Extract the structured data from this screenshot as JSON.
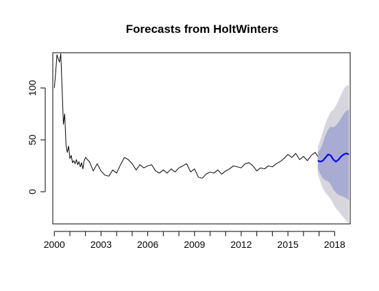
{
  "chart_data": {
    "type": "line",
    "title": "Forecasts from HoltWinters",
    "xlabel": "",
    "ylabel": "",
    "xlim": [
      1999.9,
      2019.0
    ],
    "ylim": [
      -31,
      134
    ],
    "x_ticks": [
      2000,
      2003,
      2006,
      2009,
      2012,
      2015,
      2018
    ],
    "x_tick_labels": [
      "2000",
      "2003",
      "2006",
      "2009",
      "2012",
      "2015",
      "2018"
    ],
    "y_ticks": [
      0,
      50,
      100
    ],
    "y_tick_labels": [
      "0",
      "50",
      "100"
    ],
    "grid": false,
    "colors": {
      "observed": "#000000",
      "forecast": "#0000ff",
      "band_80": "#a9acd2",
      "band_95": "#d6d6dc"
    },
    "series": [
      {
        "x": [
          2000.0,
          2000.083,
          2000.167,
          2000.25,
          2000.333,
          2000.417,
          2000.5,
          2000.583,
          2000.667,
          2000.75,
          2000.833,
          2000.917,
          2001.0,
          2001.083,
          2001.167,
          2001.25,
          2001.333,
          2001.417,
          2001.5,
          2001.583,
          2001.667,
          2001.75,
          2001.833,
          2001.917,
          2002.0,
          2002.25,
          2002.5,
          2002.75,
          2003.0,
          2003.25,
          2003.5,
          2003.75,
          2004.0,
          2004.25,
          2004.5,
          2004.75,
          2005.0,
          2005.25,
          2005.5,
          2005.75,
          2006.0,
          2006.25,
          2006.5,
          2006.75,
          2007.0,
          2007.25,
          2007.5,
          2007.75,
          2008.0,
          2008.25,
          2008.5,
          2008.75,
          2009.0,
          2009.25,
          2009.5,
          2009.75,
          2010.0,
          2010.25,
          2010.5,
          2010.75,
          2011.0,
          2011.25,
          2011.5,
          2011.75,
          2012.0,
          2012.25,
          2012.5,
          2012.75,
          2013.0,
          2013.25,
          2013.5,
          2013.75,
          2014.0,
          2014.25,
          2014.5,
          2014.75,
          2015.0,
          2015.25,
          2015.5,
          2015.75,
          2016.0,
          2016.25,
          2016.5,
          2016.75,
          2016.917
        ],
        "values": [
          100,
          115,
          132,
          128,
          125,
          133,
          100,
          65,
          75,
          45,
          38,
          44,
          32,
          35,
          28,
          30,
          27,
          31,
          26,
          29,
          24,
          28,
          22,
          30,
          33,
          29,
          20,
          27,
          20,
          16,
          15,
          21,
          18,
          26,
          33,
          31,
          27,
          21,
          26,
          23,
          25,
          26,
          20,
          18,
          21,
          18,
          22,
          19,
          23,
          25,
          27,
          19,
          22,
          14,
          13,
          17,
          19,
          18,
          21,
          17,
          20,
          22,
          25,
          24,
          23,
          27,
          28,
          25,
          20,
          23,
          22,
          25,
          24,
          27,
          29,
          32,
          36,
          33,
          37,
          31,
          34,
          30,
          35,
          38,
          34
        ]
      },
      {
        "x": [
          2016.917,
          2017.083,
          2017.25,
          2017.417,
          2017.583,
          2017.75,
          2017.917,
          2018.083,
          2018.25,
          2018.417,
          2018.583,
          2018.75,
          2018.917
        ],
        "values": [
          30,
          29,
          30,
          33,
          36,
          35,
          31,
          29,
          31,
          34,
          36,
          37,
          36
        ],
        "lower_80": [
          22,
          17,
          13,
          11,
          10,
          7,
          2,
          -1,
          -3,
          -4,
          -5,
          -6,
          -8
        ],
        "upper_80": [
          38,
          41,
          47,
          55,
          60,
          63,
          62,
          64,
          67,
          71,
          75,
          78,
          79
        ],
        "lower_95": [
          17,
          10,
          3,
          -1,
          -4,
          -7,
          -12,
          -16,
          -19,
          -22,
          -25,
          -28,
          -31
        ],
        "upper_95": [
          43,
          50,
          58,
          66,
          72,
          77,
          79,
          83,
          88,
          94,
          99,
          102,
          103
        ]
      }
    ]
  }
}
